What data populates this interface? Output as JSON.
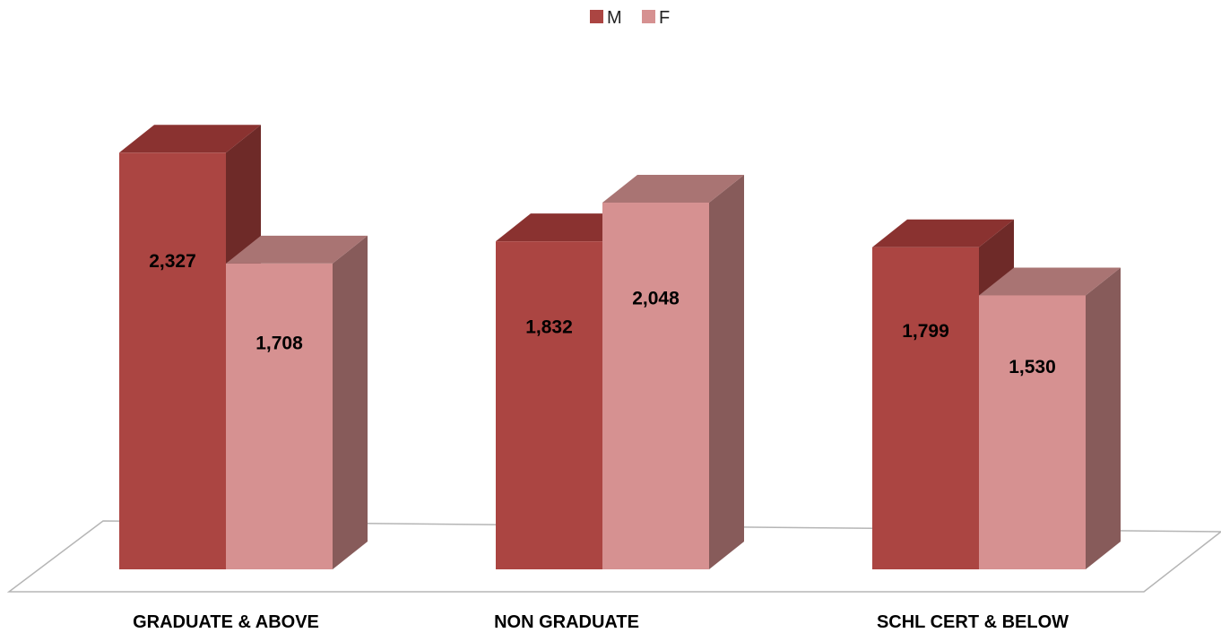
{
  "chart_data": {
    "type": "bar",
    "style": "3d-clustered-column",
    "categories": [
      "GRADUATE & ABOVE",
      "NON GRADUATE",
      "SCHL CERT & BELOW"
    ],
    "series": [
      {
        "name": "M",
        "values": [
          2327,
          1832,
          1799
        ],
        "value_labels": [
          "2,327",
          "1,832",
          "1,799"
        ],
        "color": "#ab4542",
        "top_color": "#8a3230",
        "side_color": "#6e2a28"
      },
      {
        "name": "F",
        "values": [
          1708,
          2048,
          1530
        ],
        "value_labels": [
          "1,708",
          "2,048",
          "1,530"
        ],
        "color": "#d69191",
        "top_color": "#a97473",
        "side_color": "#875b5a"
      }
    ],
    "ylim": [
      0,
      2700
    ],
    "grid": false,
    "legend_position": "top-center",
    "floor_color": "#b5b5b5"
  }
}
